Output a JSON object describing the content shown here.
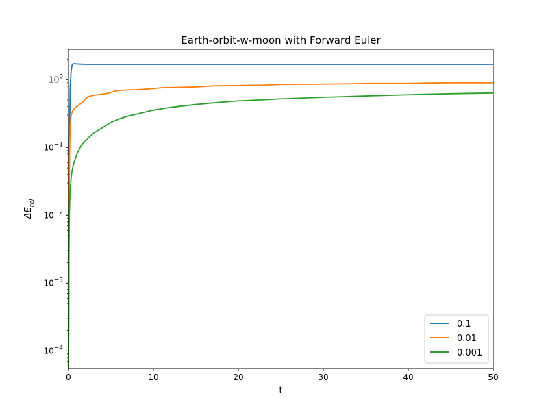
{
  "chart_data": {
    "type": "line",
    "title": "Earth-orbit-w-moon with Forward Euler",
    "xlabel": "t",
    "ylabel_base": "ΔE",
    "ylabel_sub": "rel",
    "xlim": [
      0,
      50
    ],
    "ylim": [
      5.5e-05,
      2.8
    ],
    "yscale": "log",
    "x_ticks": [
      0,
      10,
      20,
      30,
      40,
      50
    ],
    "y_ticks": [
      {
        "value": 0.0001,
        "base": "10",
        "exp": "−4"
      },
      {
        "value": 0.001,
        "base": "10",
        "exp": "−3"
      },
      {
        "value": 0.01,
        "base": "10",
        "exp": "−2"
      },
      {
        "value": 0.1,
        "base": "10",
        "exp": "−1"
      },
      {
        "value": 1,
        "base": "10",
        "exp": "0"
      }
    ],
    "grid": false,
    "legend_position": "bottom-right",
    "series": [
      {
        "name": "0.1",
        "color": "#1f77b4",
        "x": [
          0,
          0.05,
          0.1,
          0.15,
          0.2,
          0.3,
          0.4,
          0.5,
          0.7,
          1,
          2,
          5,
          10,
          20,
          30,
          40,
          50
        ],
        "y": [
          5e-05,
          0.002,
          0.05,
          0.3,
          0.8,
          1.3,
          1.6,
          1.7,
          1.72,
          1.7,
          1.68,
          1.68,
          1.68,
          1.68,
          1.68,
          1.68,
          1.68
        ]
      },
      {
        "name": "0.01",
        "color": "#ff7f0e",
        "x": [
          0,
          0.03,
          0.06,
          0.1,
          0.15,
          0.2,
          0.3,
          0.5,
          0.8,
          1.2,
          1.7,
          2.0,
          2.3,
          2.6,
          3.0,
          4.0,
          4.7,
          5.5,
          6.5,
          8.0,
          9.5,
          11,
          13,
          15,
          17,
          20,
          23,
          25,
          30,
          33,
          35,
          40,
          42,
          45,
          50
        ],
        "y": [
          5e-05,
          0.001,
          0.01,
          0.05,
          0.12,
          0.2,
          0.3,
          0.35,
          0.39,
          0.42,
          0.47,
          0.52,
          0.56,
          0.575,
          0.59,
          0.61,
          0.63,
          0.68,
          0.7,
          0.71,
          0.73,
          0.76,
          0.77,
          0.78,
          0.81,
          0.82,
          0.83,
          0.85,
          0.86,
          0.87,
          0.88,
          0.88,
          0.89,
          0.9,
          0.9
        ]
      },
      {
        "name": "0.001",
        "color": "#2ca02c",
        "x": [
          0,
          0.05,
          0.1,
          0.15,
          0.2,
          0.3,
          0.4,
          0.5,
          0.7,
          1.0,
          1.5,
          2.0,
          2.5,
          3.0,
          4.0,
          5.0,
          6.0,
          7.0,
          8.0,
          10,
          12,
          15,
          18,
          20,
          25,
          30,
          35,
          40,
          45,
          50
        ],
        "y": [
          5e-05,
          0.003,
          0.01,
          0.017,
          0.024,
          0.035,
          0.044,
          0.051,
          0.063,
          0.08,
          0.108,
          0.125,
          0.145,
          0.165,
          0.195,
          0.235,
          0.265,
          0.29,
          0.31,
          0.355,
          0.39,
          0.43,
          0.465,
          0.485,
          0.52,
          0.55,
          0.575,
          0.6,
          0.62,
          0.635
        ]
      }
    ]
  }
}
